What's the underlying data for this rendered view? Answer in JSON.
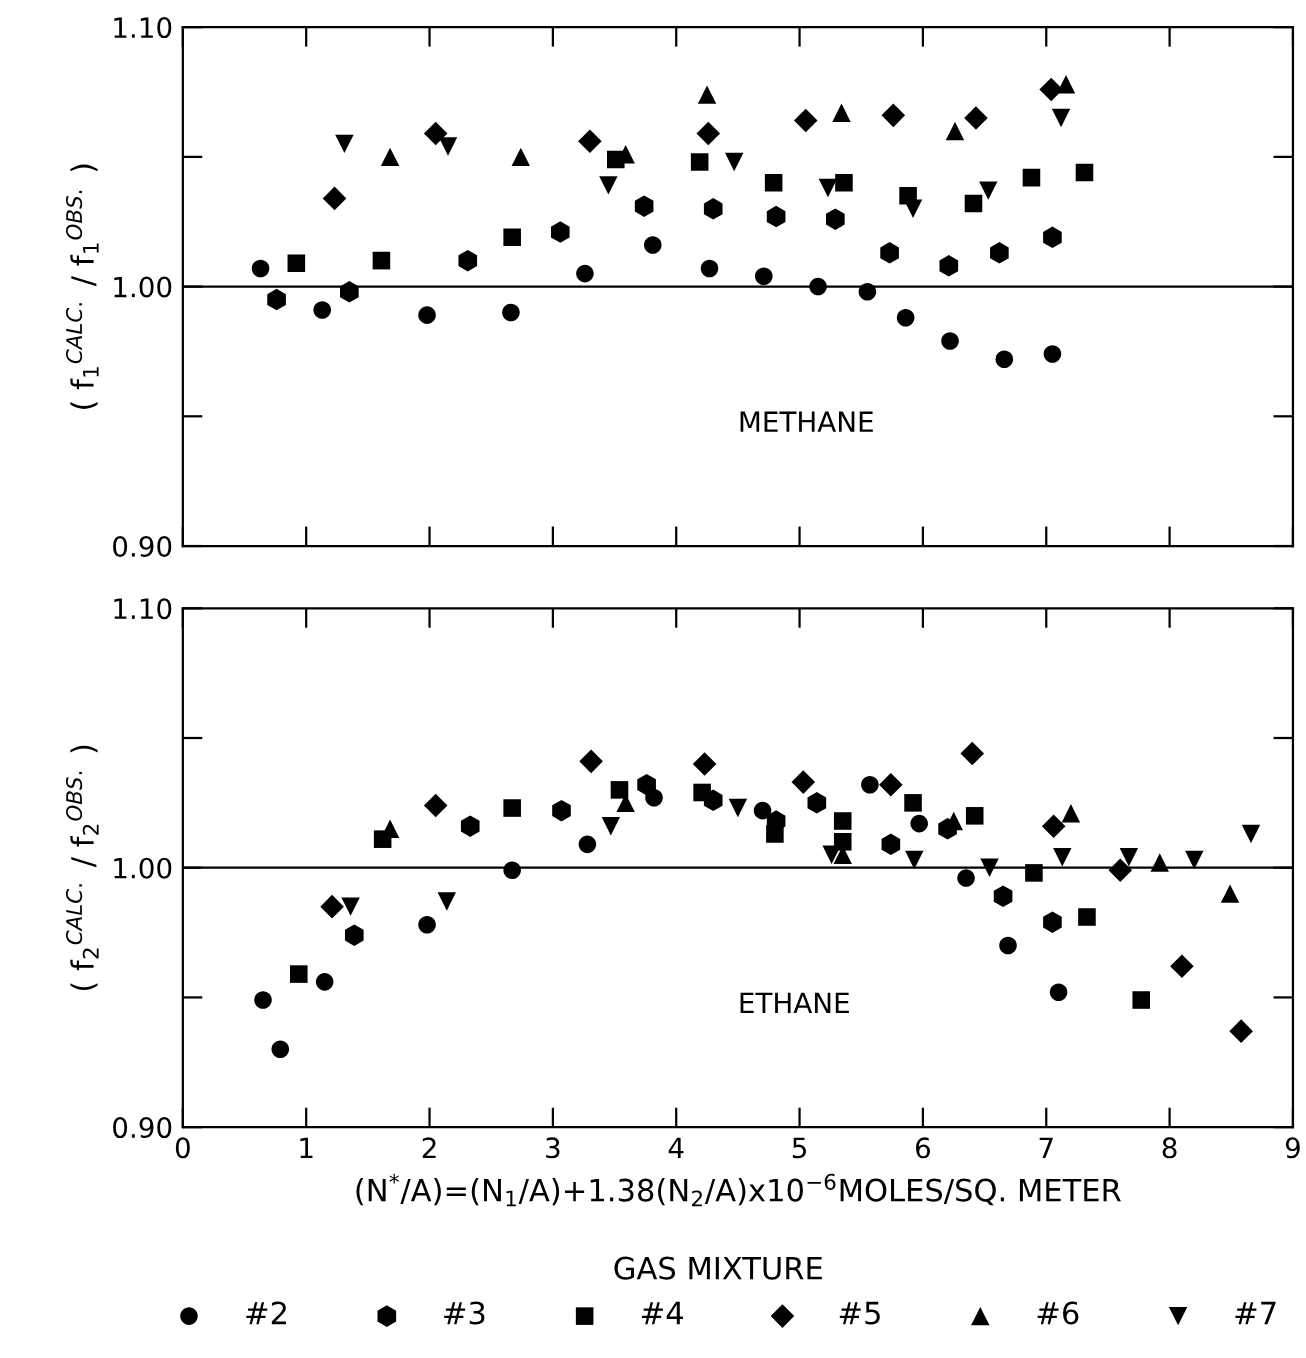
{
  "chart_data": [
    {
      "type": "scatter",
      "ylabel": "( f$_{1}$$^{CALC.}$ / f$_{1}$$^{OBS.}$ )",
      "annotations": [
        "METHANE"
      ],
      "xlim": [
        0,
        9
      ],
      "xticks": [
        0,
        1,
        2,
        3,
        4,
        5,
        6,
        7,
        8,
        9
      ],
      "ylim": [
        0.9,
        1.1
      ],
      "yticks": [
        {
          "value": 0.9,
          "label": "0.90"
        },
        {
          "value": 0.95,
          "label": null
        },
        {
          "value": 1.0,
          "label": "1.00"
        },
        {
          "value": 1.05,
          "label": null
        },
        {
          "value": 1.1,
          "label": "1.10"
        }
      ],
      "tick_labels": "y",
      "grid": false,
      "legend": false,
      "ref_lines": [
        {
          "axis": "y",
          "value": 1.0,
          "label": null,
          "color": "#000000"
        }
      ],
      "series": [
        {
          "marker": "circle",
          "color": "#000000",
          "x": [
            0.63,
            1.13,
            1.98,
            2.66,
            3.26,
            3.81,
            4.27,
            4.71,
            5.15,
            5.55,
            5.86,
            6.22,
            6.66,
            7.05
          ],
          "values": [
            1.007,
            0.991,
            0.989,
            0.99,
            1.005,
            1.016,
            1.007,
            1.004,
            1.0,
            0.998,
            0.988,
            0.979,
            0.972,
            0.974
          ]
        },
        {
          "color": "#000000",
          "x": [
            0.76,
            1.35,
            2.31,
            3.06,
            3.74,
            4.3,
            4.81,
            5.29,
            5.73,
            6.21,
            6.62,
            7.05
          ],
          "values": [
            0.995,
            0.998,
            1.01,
            1.021,
            1.031,
            1.03,
            1.027,
            1.026,
            1.013,
            1.008,
            1.013,
            1.019
          ]
        },
        {
          "marker": "square",
          "color": "#000000",
          "x": [
            0.92,
            1.61,
            2.67,
            3.51,
            4.19,
            4.79,
            5.36,
            5.88,
            6.41,
            6.88,
            7.31
          ],
          "values": [
            1.009,
            1.01,
            1.019,
            1.049,
            1.048,
            1.04,
            1.04,
            1.035,
            1.032,
            1.042,
            1.044
          ]
        },
        {
          "marker": "diamond",
          "color": "#000000",
          "x": [
            1.23,
            2.05,
            3.3,
            4.26,
            5.05,
            5.76,
            6.43,
            7.04
          ],
          "values": [
            1.034,
            1.059,
            1.056,
            1.059,
            1.064,
            1.066,
            1.065,
            1.076
          ]
        },
        {
          "marker": "triangle",
          "color": "#000000",
          "x": [
            1.68,
            2.74,
            3.59,
            4.25,
            5.34,
            6.26,
            7.16
          ],
          "values": [
            1.05,
            1.05,
            1.051,
            1.074,
            1.067,
            1.06,
            1.078
          ]
        },
        {
          "marker": "triangle_down",
          "color": "#000000",
          "x": [
            1.31,
            2.15,
            3.45,
            4.47,
            5.23,
            5.92,
            6.53,
            7.12
          ],
          "values": [
            1.055,
            1.054,
            1.039,
            1.048,
            1.038,
            1.03,
            1.037,
            1.065
          ]
        }
      ]
    },
    {
      "type": "scatter",
      "ylabel": "( f$_{2}$$^{CALC.}$ / f$_{2}$$^{OBS.}$ )",
      "xlabel": "(N$^{*}$/A)=(N$_{1}$/A)+1.38(N$_{2}$/A)x10$^{−6}$MOLES/SQ. METER",
      "legend_title": "GAS MIXTURE",
      "annotations": [
        "ETHANE"
      ],
      "xlim": [
        0,
        9
      ],
      "xticks": [
        0,
        1,
        2,
        3,
        4,
        5,
        6,
        7,
        8,
        9
      ],
      "ylim": [
        0.9,
        1.1
      ],
      "yticks": [
        {
          "value": 0.9,
          "label": "0.90"
        },
        {
          "value": 0.95,
          "label": null
        },
        {
          "value": 1.0,
          "label": "1.00"
        },
        {
          "value": 1.05,
          "label": null
        },
        {
          "value": 1.1,
          "label": "1.10"
        }
      ],
      "grid": false,
      "legend": "bottom",
      "ref_lines": [
        {
          "axis": "y",
          "value": 1.0,
          "label": null,
          "color": "#000000"
        }
      ],
      "series": [
        {
          "name": "#2",
          "marker": "circle",
          "color": "#000000",
          "x": [
            0.65,
            0.79,
            1.15,
            1.98,
            2.67,
            3.28,
            3.82,
            4.7,
            5.57,
            5.97,
            6.35,
            6.69,
            7.1
          ],
          "values": [
            0.949,
            0.93,
            0.956,
            0.978,
            0.999,
            1.009,
            1.027,
            1.022,
            1.032,
            1.017,
            0.996,
            0.97,
            0.952
          ]
        },
        {
          "name": "#3",
          "color": "#000000",
          "x": [
            1.39,
            2.33,
            3.07,
            3.76,
            4.3,
            4.81,
            5.14,
            5.74,
            6.2,
            6.65,
            7.05
          ],
          "values": [
            0.974,
            1.016,
            1.022,
            1.032,
            1.026,
            1.018,
            1.025,
            1.009,
            1.015,
            0.989,
            0.979
          ]
        },
        {
          "name": "#4",
          "marker": "square",
          "color": "#000000",
          "x": [
            0.94,
            1.62,
            2.67,
            3.54,
            4.21,
            4.8,
            5.35,
            5.35,
            5.92,
            6.42,
            6.9,
            7.33,
            7.77
          ],
          "values": [
            0.959,
            1.011,
            1.023,
            1.03,
            1.029,
            1.013,
            1.018,
            1.01,
            1.025,
            1.02,
            0.998,
            0.981,
            0.949
          ]
        },
        {
          "name": "#5",
          "marker": "diamond",
          "color": "#000000",
          "x": [
            1.21,
            2.05,
            3.31,
            4.23,
            5.03,
            5.74,
            6.4,
            7.06,
            7.6,
            8.1,
            8.58
          ],
          "values": [
            0.985,
            1.024,
            1.041,
            1.04,
            1.033,
            1.032,
            1.044,
            1.016,
            0.999,
            0.962,
            0.937
          ]
        },
        {
          "name": "#6",
          "marker": "triangle",
          "color": "#000000",
          "x": [
            1.68,
            3.59,
            5.35,
            6.25,
            7.2,
            7.92,
            8.49
          ],
          "values": [
            1.015,
            1.025,
            1.005,
            1.018,
            1.021,
            1.002,
            0.99
          ]
        },
        {
          "name": "#7",
          "marker": "triangle_down",
          "color": "#000000",
          "x": [
            1.36,
            2.14,
            3.47,
            4.5,
            5.26,
            5.93,
            6.54,
            7.13,
            7.67,
            8.2,
            8.66
          ],
          "values": [
            0.985,
            0.987,
            1.016,
            1.023,
            1.005,
            1.003,
            1.0,
            1.004,
            1.004,
            1.003,
            1.013
          ]
        }
      ]
    }
  ]
}
